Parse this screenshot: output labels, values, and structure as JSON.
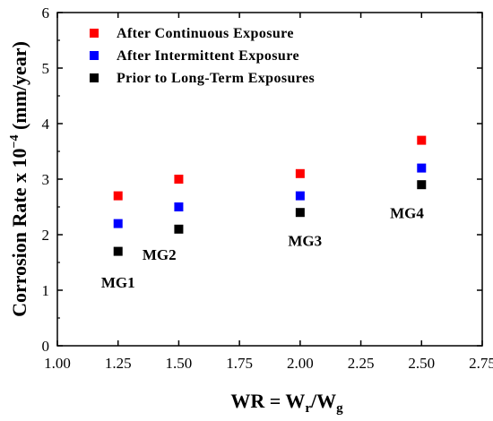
{
  "chart_data": {
    "type": "scatter",
    "xlabel_main": "WR = W",
    "xlabel_sub1": "r",
    "xlabel_mid": "/W",
    "xlabel_sub2": "g",
    "ylabel_main": "Corrosion Rate x 10",
    "ylabel_exp": "−4",
    "ylabel_unit": " (mm/year)",
    "xlim": [
      1.0,
      2.75
    ],
    "ylim": [
      0,
      6
    ],
    "xticks": [
      "1.00",
      "1.25",
      "1.50",
      "1.75",
      "2.00",
      "2.25",
      "2.50",
      "2.75"
    ],
    "yticks": [
      "0",
      "1",
      "2",
      "3",
      "4",
      "5",
      "6"
    ],
    "legend_position": "top-left",
    "grid": false,
    "series": [
      {
        "name": "After Continuous Exposure",
        "color": "#ff0000",
        "x": [
          1.25,
          1.5,
          2.0,
          2.5
        ],
        "y": [
          2.7,
          3.0,
          3.1,
          3.7
        ]
      },
      {
        "name": "After Intermittent Exposure",
        "color": "#0000ff",
        "x": [
          1.25,
          1.5,
          2.0,
          2.5
        ],
        "y": [
          2.2,
          2.5,
          2.7,
          3.2
        ]
      },
      {
        "name": "Prior to Long-Term Exposures",
        "color": "#000000",
        "x": [
          1.25,
          1.5,
          2.0,
          2.5
        ],
        "y": [
          1.7,
          2.1,
          2.4,
          2.9
        ]
      }
    ],
    "annotations": [
      {
        "text": "MG1",
        "x": 1.25,
        "y": 1.05
      },
      {
        "text": "MG2",
        "x": 1.42,
        "y": 1.55
      },
      {
        "text": "MG3",
        "x": 2.02,
        "y": 1.8
      },
      {
        "text": "MG4",
        "x": 2.44,
        "y": 2.3
      }
    ]
  }
}
